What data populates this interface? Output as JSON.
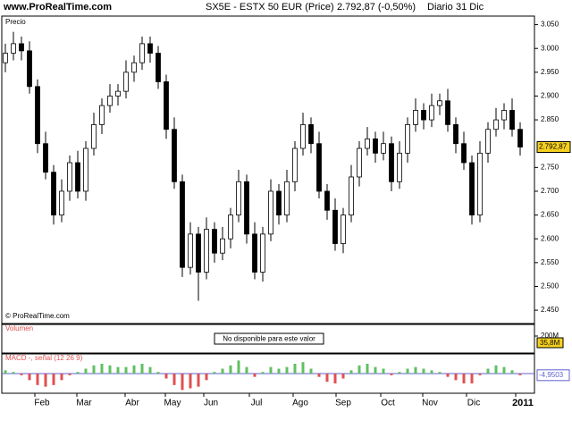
{
  "chart_data": {
    "type": "candlestick",
    "site": "www.ProRealTime.com",
    "symbol": "SX5E - ESTX 50 EUR (Price)",
    "quote": "2.792,87 (-0,50%)",
    "period": "Diario",
    "date": "31 Dic",
    "panel_label": "Precio",
    "copyright": "© ProRealTime.com",
    "open": [
      2970,
      2990,
      3010,
      2995,
      2920,
      2800,
      2740,
      2650,
      2700,
      2760,
      2700,
      2790,
      2840,
      2880,
      2900,
      2910,
      2950,
      2970,
      3010,
      2990,
      2930,
      2830,
      2720,
      2540,
      2610,
      2530,
      2620,
      2570,
      2600,
      2650,
      2720,
      2610,
      2530,
      2610,
      2700,
      2650,
      2720,
      2790,
      2840,
      2800,
      2700,
      2660,
      2590,
      2650,
      2730,
      2790,
      2810,
      2780,
      2800,
      2720,
      2780,
      2840,
      2870,
      2850,
      2880,
      2890,
      2840,
      2800,
      2760,
      2650,
      2780,
      2830,
      2850,
      2870,
      2830
    ],
    "high": [
      3010,
      3035,
      3025,
      3015,
      2935,
      2825,
      2755,
      2725,
      2775,
      2785,
      2805,
      2865,
      2895,
      2925,
      2925,
      2975,
      2985,
      3025,
      3025,
      3005,
      2945,
      2855,
      2735,
      2635,
      2625,
      2645,
      2635,
      2625,
      2665,
      2745,
      2735,
      2635,
      2625,
      2725,
      2715,
      2745,
      2805,
      2865,
      2855,
      2825,
      2715,
      2685,
      2665,
      2755,
      2805,
      2835,
      2825,
      2825,
      2815,
      2805,
      2855,
      2895,
      2885,
      2905,
      2905,
      2915,
      2855,
      2825,
      2775,
      2805,
      2845,
      2875,
      2885,
      2895,
      2845
    ],
    "low": [
      2950,
      2975,
      2975,
      2905,
      2780,
      2725,
      2630,
      2635,
      2680,
      2685,
      2680,
      2775,
      2820,
      2865,
      2880,
      2895,
      2930,
      2955,
      2970,
      2915,
      2810,
      2705,
      2520,
      2525,
      2470,
      2515,
      2550,
      2555,
      2580,
      2635,
      2590,
      2515,
      2510,
      2595,
      2630,
      2635,
      2700,
      2775,
      2780,
      2685,
      2640,
      2575,
      2570,
      2635,
      2710,
      2775,
      2760,
      2765,
      2700,
      2705,
      2760,
      2825,
      2830,
      2835,
      2860,
      2825,
      2780,
      2745,
      2630,
      2635,
      2760,
      2815,
      2830,
      2815,
      2775
    ],
    "close": [
      2990,
      3010,
      2995,
      2920,
      2800,
      2740,
      2650,
      2700,
      2760,
      2700,
      2790,
      2840,
      2880,
      2900,
      2910,
      2950,
      2970,
      3010,
      2990,
      2930,
      2830,
      2720,
      2540,
      2610,
      2530,
      2620,
      2570,
      2600,
      2650,
      2720,
      2610,
      2530,
      2610,
      2700,
      2650,
      2720,
      2790,
      2840,
      2800,
      2700,
      2660,
      2590,
      2650,
      2730,
      2790,
      2810,
      2780,
      2800,
      2720,
      2780,
      2840,
      2870,
      2850,
      2880,
      2890,
      2840,
      2800,
      2760,
      2650,
      2780,
      2830,
      2850,
      2870,
      2830,
      2792.87
    ],
    "current": {
      "value": 2792.87,
      "label": "2.792,87"
    },
    "ylim": [
      2422,
      3068
    ],
    "yticks": [
      {
        "value": 3050,
        "label": "3.050"
      },
      {
        "value": 3000,
        "label": "3.000"
      },
      {
        "value": 2950,
        "label": "2.950"
      },
      {
        "value": 2900,
        "label": "2.900"
      },
      {
        "value": 2850,
        "label": "2.850"
      },
      {
        "value": 2750,
        "label": "2.750"
      },
      {
        "value": 2700,
        "label": "2.700"
      },
      {
        "value": 2650,
        "label": "2.650"
      },
      {
        "value": 2600,
        "label": "2.600"
      },
      {
        "value": 2550,
        "label": "2.550"
      },
      {
        "value": 2500,
        "label": "2.500"
      },
      {
        "value": 2450,
        "label": "2.450"
      }
    ],
    "x_labels": [
      "Feb",
      "Mar",
      "Abr",
      "May",
      "Jun",
      "Jul",
      "Ago",
      "Sep",
      "Oct",
      "Nov",
      "Dic",
      "2011"
    ],
    "volume": {
      "label": "Volumen",
      "message": "No disponible para este valor",
      "tick": {
        "value": 200000000,
        "label": "200M"
      },
      "current": {
        "value": 35800000,
        "label": "35,8M"
      }
    },
    "macd": {
      "label": "MACD -, señal (12 26 9)",
      "ylim": [
        -60,
        60
      ],
      "values": [
        10,
        5,
        -5,
        -20,
        -35,
        -40,
        -35,
        -20,
        -5,
        5,
        15,
        25,
        30,
        25,
        20,
        20,
        25,
        30,
        20,
        5,
        -15,
        -35,
        -50,
        -45,
        -40,
        -20,
        5,
        15,
        25,
        40,
        20,
        -10,
        5,
        20,
        15,
        20,
        30,
        35,
        15,
        -10,
        -25,
        -30,
        -15,
        10,
        25,
        30,
        20,
        15,
        -5,
        5,
        15,
        20,
        15,
        10,
        5,
        -10,
        -20,
        -30,
        -30,
        -5,
        15,
        25,
        20,
        10,
        -4.9503
      ],
      "current": {
        "value": -4.9503,
        "label": "-4,9503"
      }
    }
  }
}
